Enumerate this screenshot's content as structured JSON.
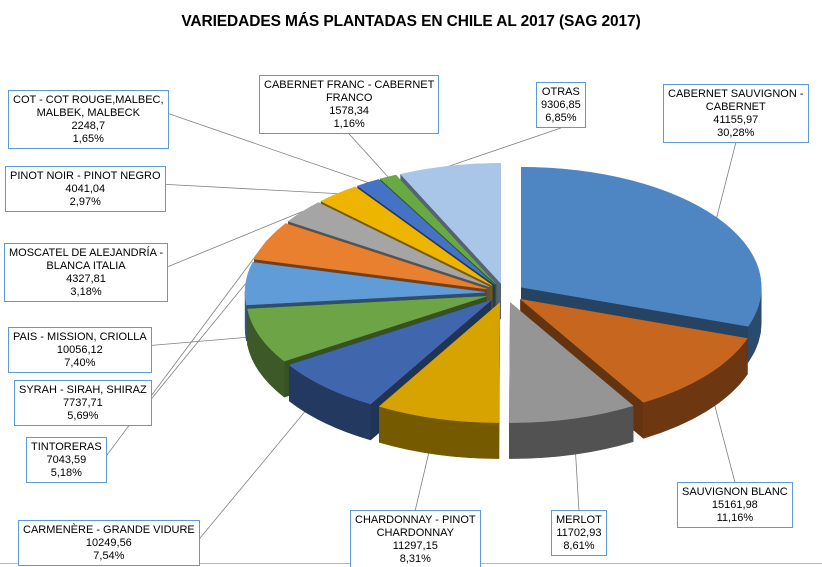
{
  "title": "VARIEDADES MÁS PLANTADAS EN CHILE AL 2017 (SAG 2017)",
  "styles": {
    "background": "#ffffff",
    "callout_border_color": "#5b9bd5",
    "callout_fill_color": "#ffffff",
    "leader_line_color": "#808080",
    "baseline_color": "#a7bccd"
  },
  "chart_data": {
    "type": "pie",
    "projection": "3d-exploded",
    "title": "VARIEDADES MÁS PLANTADAS EN CHILE AL 2017 (SAG 2017)",
    "start_angle_deg": 0,
    "direction": "clockwise",
    "legend_position": "callout-labels",
    "slices": [
      {
        "name_lines": [
          "CABERNET SAUVIGNON -",
          "CABERNET"
        ],
        "value": 41155.97,
        "value_display": "41155,97",
        "percent": 30.28,
        "percent_display": "30,28%",
        "color": "#4e86c4"
      },
      {
        "name_lines": [
          "SAUVIGNON BLANC"
        ],
        "value": 15161.98,
        "value_display": "15161,98",
        "percent": 11.16,
        "percent_display": "11,16%",
        "color": "#c7661e"
      },
      {
        "name_lines": [
          "MERLOT"
        ],
        "value": 11702.93,
        "value_display": "11702,93",
        "percent": 8.61,
        "percent_display": "8,61%",
        "color": "#959595"
      },
      {
        "name_lines": [
          "CHARDONNAY - PINOT",
          "CHARDONNAY"
        ],
        "value": 11297.15,
        "value_display": "11297,15",
        "percent": 8.31,
        "percent_display": "8,31%",
        "color": "#d7a300"
      },
      {
        "name_lines": [
          "CARMENÈRE - GRANDE VIDURE"
        ],
        "value": 10249.56,
        "value_display": "10249,56",
        "percent": 7.54,
        "percent_display": "7,54%",
        "color": "#4067ae"
      },
      {
        "name_lines": [
          "PAIS - MISSION, CRIOLLA"
        ],
        "value": 10056.12,
        "value_display": "10056,12",
        "percent": 7.4,
        "percent_display": "7,40%",
        "color": "#6ca446"
      },
      {
        "name_lines": [
          "SYRAH - SIRAH, SHIRAZ"
        ],
        "value": 7737.71,
        "value_display": "7737,71",
        "percent": 5.69,
        "percent_display": "5,69%",
        "color": "#609cd8"
      },
      {
        "name_lines": [
          "TINTORERAS"
        ],
        "value": 7043.59,
        "value_display": "7043,59",
        "percent": 5.18,
        "percent_display": "5,18%",
        "color": "#e8802f"
      },
      {
        "name_lines": [
          "MOSCATEL DE ALEJANDRÍA -",
          "BLANCA ITALIA"
        ],
        "value": 4327.81,
        "value_display": "4327,81",
        "percent": 3.18,
        "percent_display": "3,18%",
        "color": "#a5a5a5"
      },
      {
        "name_lines": [
          "PINOT NOIR - PINOT NEGRO"
        ],
        "value": 4041.04,
        "value_display": "4041,04",
        "percent": 2.97,
        "percent_display": "2,97%",
        "color": "#eeb500"
      },
      {
        "name_lines": [
          "COT - COT ROUGE,MALBEC,",
          "MALBEK, MALBECK"
        ],
        "value": 2248.7,
        "value_display": "2248,7",
        "percent": 1.65,
        "percent_display": "1,65%",
        "color": "#4472c4"
      },
      {
        "name_lines": [
          "CABERNET FRANC - CABERNET",
          "FRANCO"
        ],
        "value": 1578.34,
        "value_display": "1578,34",
        "percent": 1.16,
        "percent_display": "1,16%",
        "color": "#68a943"
      },
      {
        "name_lines": [
          "OTRAS"
        ],
        "value": 9306.85,
        "value_display": "9306,85",
        "percent": 6.85,
        "percent_display": "6,85%",
        "color": "#a9c6e8"
      }
    ]
  }
}
